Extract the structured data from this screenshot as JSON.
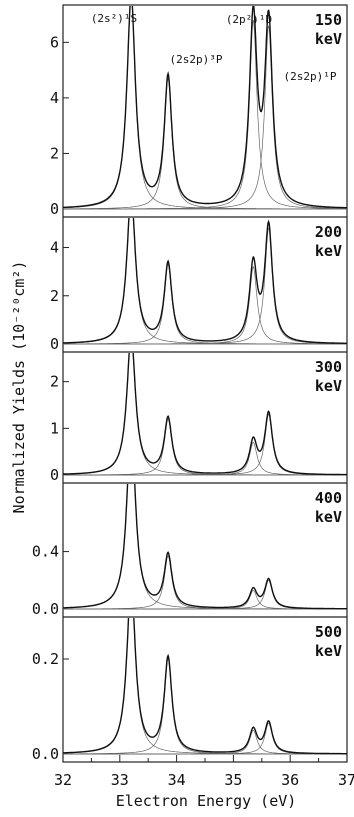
{
  "chart_data": {
    "type": "line",
    "xlabel": "Electron Energy (eV)",
    "ylabel": "Normalized Yields (10⁻²⁰cm²)",
    "xlim": [
      32,
      37
    ],
    "x_ticks": [
      "32",
      "33",
      "34",
      "35",
      "36",
      "37"
    ],
    "peak_labels": [
      {
        "text": "(2s²)¹S",
        "energy": 33.2
      },
      {
        "text": "(2s2p)³P",
        "energy": 33.85
      },
      {
        "text": "(2p²)¹D",
        "energy": 35.35
      },
      {
        "text": "(2s2p)¹P",
        "energy": 35.6
      }
    ],
    "peaks": [
      {
        "name": "(2s²)¹S",
        "center": 33.2,
        "width": 0.09
      },
      {
        "name": "(2s2p)³P",
        "center": 33.85,
        "width": 0.08
      },
      {
        "name": "(2p²)¹D",
        "center": 35.35,
        "width": 0.08
      },
      {
        "name": "(2s2p)¹P",
        "center": 35.62,
        "width": 0.08
      }
    ],
    "panels": [
      {
        "energy_line1": "150",
        "energy_line2": "keV",
        "ylim": [
          0,
          7.2
        ],
        "y_ticks": [
          "0",
          "2",
          "4",
          "6"
        ],
        "y_tick_values": [
          0,
          2,
          4,
          6
        ],
        "peak_heights": [
          7.6,
          4.7,
          6.8,
          6.6
        ]
      },
      {
        "energy_line1": "200",
        "energy_line2": "keV",
        "ylim": [
          0,
          5.1
        ],
        "y_ticks": [
          "0",
          "2",
          "4"
        ],
        "y_tick_values": [
          0,
          2,
          4
        ],
        "peak_heights": [
          6.2,
          3.3,
          3.2,
          4.8
        ]
      },
      {
        "energy_line1": "300",
        "energy_line2": "keV",
        "ylim": [
          0,
          2.55
        ],
        "y_ticks": [
          "0",
          "1",
          "2"
        ],
        "y_tick_values": [
          0,
          1,
          2
        ],
        "peak_heights": [
          3.0,
          1.2,
          0.7,
          1.3
        ]
      },
      {
        "energy_line1": "400",
        "energy_line2": "keV",
        "ylim": [
          0,
          0.85
        ],
        "y_ticks": [
          "0.0",
          "0.4"
        ],
        "y_tick_values": [
          0,
          0.4
        ],
        "peak_heights": [
          1.3,
          0.37,
          0.13,
          0.2
        ]
      },
      {
        "energy_line1": "500",
        "energy_line2": "keV",
        "ylim": [
          0,
          0.28
        ],
        "y_ticks": [
          "0.0",
          "0.2"
        ],
        "y_tick_values": [
          0,
          0.2
        ],
        "peak_heights": [
          0.36,
          0.2,
          0.05,
          0.065
        ]
      }
    ]
  }
}
